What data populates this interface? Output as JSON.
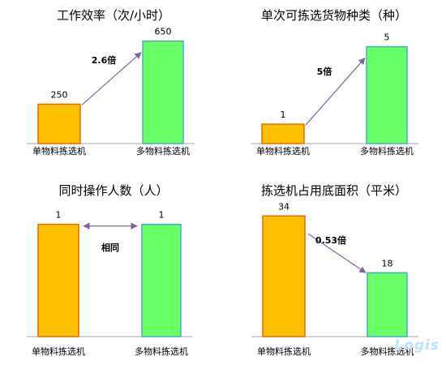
{
  "colors": {
    "single_fill": "#FFC000",
    "single_stroke": "#E36C09",
    "multi_fill": "#66FF66",
    "multi_stroke": "#4BACC6",
    "arrow": "#8064A2",
    "axis": "#A6A6A6",
    "text": "#000000"
  },
  "watermark": "Logis",
  "chart_data": [
    {
      "type": "bar",
      "title": "工作效率（次/小时）",
      "categories": [
        "单物料拣选机",
        "多物料拣选机"
      ],
      "values": [
        250,
        650
      ],
      "ylim": [
        0,
        700
      ],
      "annotation": {
        "text": "2.6倍",
        "from": 0,
        "to": 1,
        "style": "arrow"
      }
    },
    {
      "type": "bar",
      "title": "单次可拣选货物种类（种）",
      "categories": [
        "单物料拣选机",
        "多物料拣选机"
      ],
      "values": [
        1,
        5
      ],
      "ylim": [
        0,
        5.4
      ],
      "annotation": {
        "text": "5倍",
        "from": 0,
        "to": 1,
        "style": "arrow"
      }
    },
    {
      "type": "bar",
      "title": "同时操作人数（人）",
      "categories": [
        "单物料拣选机",
        "多物料拣选机"
      ],
      "values": [
        1,
        1
      ],
      "ylim": [
        0,
        1.25
      ],
      "annotation": {
        "text": "相同",
        "from": 0,
        "to": 1,
        "style": "double-arrow"
      }
    },
    {
      "type": "bar",
      "title": "拣选机占用底面积（平米）",
      "categories": [
        "单物料拣选机",
        "多物料拣选机"
      ],
      "values": [
        34,
        18
      ],
      "ylim": [
        0,
        40
      ],
      "annotation": {
        "text": "0.53倍",
        "from": 0,
        "to": 1,
        "style": "arrow"
      }
    }
  ]
}
